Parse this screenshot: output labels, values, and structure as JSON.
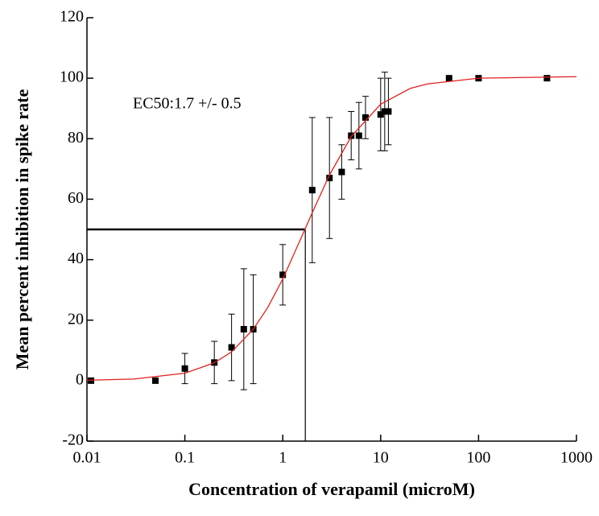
{
  "chart_data": {
    "type": "scatter",
    "x_label": "Concentration of verapamil (microM)",
    "y_label": "Mean  percent inhibition in spike  rate",
    "annotation": "EC50:1.7 +/- 0.5",
    "xscale": "log",
    "xlim": [
      0.01,
      1000
    ],
    "xticks": [
      0.01,
      0.1,
      1,
      10,
      100,
      1000
    ],
    "ylim": [
      -20,
      120
    ],
    "yticks": [
      -20,
      0,
      20,
      40,
      60,
      80,
      100,
      120
    ],
    "series": [
      {
        "color": "#000000",
        "x": [
          0.011,
          0.05,
          0.1,
          0.2,
          0.3,
          0.4,
          0.5,
          1,
          2,
          3,
          4,
          5,
          6,
          7,
          10,
          11,
          12,
          50,
          100,
          500
        ],
        "values": [
          0,
          0,
          4,
          6,
          11,
          17,
          17,
          35,
          63,
          67,
          69,
          81,
          81,
          87,
          88,
          89,
          89,
          100,
          100,
          100
        ],
        "errors": [
          null,
          null,
          5,
          7,
          11,
          20,
          18,
          10,
          24,
          20,
          9,
          8,
          11,
          7,
          12,
          13,
          11,
          null,
          null,
          null
        ]
      },
      {
        "color": "#e0201b",
        "style": "line",
        "x": [
          0.01,
          0.03,
          0.1,
          0.2,
          0.3,
          0.5,
          0.7,
          1,
          1.7,
          2,
          3,
          5,
          10,
          20,
          30,
          100,
          1000
        ],
        "values": [
          0.13,
          0.53,
          2.46,
          5.9,
          9.5,
          17,
          24.1,
          33.6,
          50.3,
          55.5,
          68,
          80.7,
          91.4,
          96.6,
          98.1,
          100,
          100.5
        ]
      }
    ],
    "ec50_guide": {
      "x": 1.7,
      "y": 50
    }
  }
}
